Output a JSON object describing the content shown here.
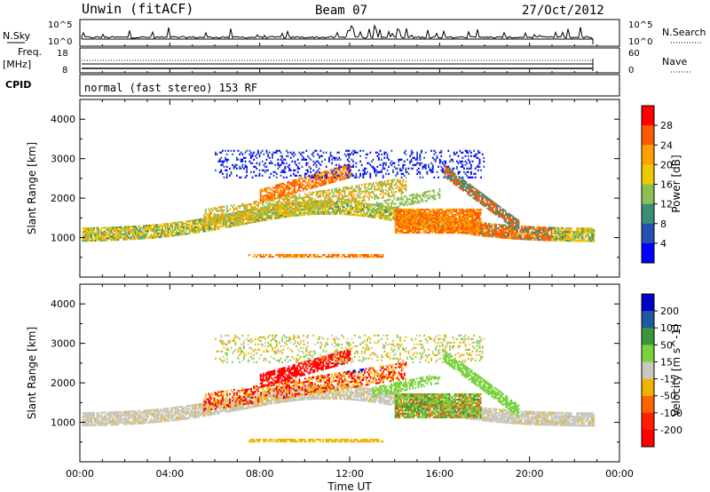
{
  "header": {
    "radar": "Unwin (fitACF)",
    "beam": "Beam 07",
    "date": "27/Oct/2012"
  },
  "panels": {
    "nsky": {
      "label": "N.Sky",
      "right_label": "N.Search",
      "ticks_left": [
        "10^5",
        "10^0"
      ],
      "ticks_right": [
        "10^5",
        "10^0"
      ]
    },
    "freq": {
      "label_line1": "Freq.",
      "label_line2": "[MHz]",
      "right_label": "Nave",
      "ticks_left": [
        "18",
        "8"
      ],
      "ticks_right": [
        "60",
        "0"
      ]
    },
    "cpid": {
      "label": "CPID",
      "text": "normal (fast stereo) 153 RF"
    }
  },
  "chart_data": [
    {
      "type": "heatmap",
      "quantity": "Power",
      "ylabel": "Slant Range [km]",
      "xlabel": "",
      "xlim": [
        0,
        24
      ],
      "ylim": [
        0,
        4500
      ],
      "yticks": [
        1000,
        2000,
        3000,
        4000
      ],
      "colorbar": {
        "label": "Power [dB]",
        "ticks": [
          "28",
          "24",
          "20",
          "16",
          "12",
          "8",
          "4"
        ],
        "colors": [
          "#ff0000",
          "#ff5a00",
          "#ffa000",
          "#f0c800",
          "#8cc050",
          "#3c8c78",
          "#2850b4",
          "#0000ff"
        ]
      }
    },
    {
      "type": "heatmap",
      "quantity": "Velocity",
      "ylabel": "Slant Range [km]",
      "xlabel": "Time UT",
      "xlim": [
        0,
        24
      ],
      "ylim": [
        0,
        4500
      ],
      "yticks": [
        1000,
        2000,
        3000,
        4000
      ],
      "xticks": [
        "00:00",
        "04:00",
        "08:00",
        "12:00",
        "16:00",
        "20:00",
        "00:00"
      ],
      "colorbar": {
        "label": "Velocity [m s^-1]",
        "ticks": [
          "200",
          "100",
          "50",
          "15",
          "-15",
          "-50",
          "-100",
          "-200"
        ],
        "colors": [
          "#0000c8",
          "#1e5aa0",
          "#3c963c",
          "#78d23c",
          "#c8c8be",
          "#f0b400",
          "#ff6400",
          "#ff1e00",
          "#ff0000"
        ]
      }
    }
  ]
}
